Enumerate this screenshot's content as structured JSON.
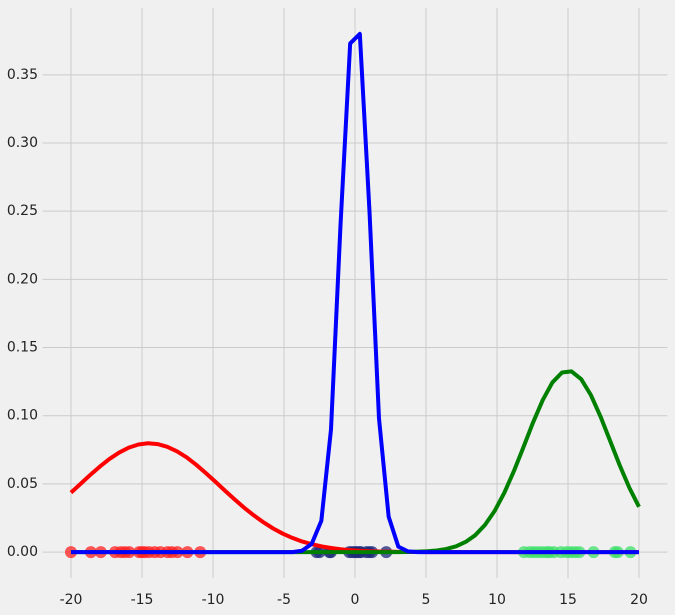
{
  "chart_data": {
    "type": "line",
    "x": [
      -20.0,
      -19.32,
      -18.64,
      -17.97,
      -17.29,
      -16.61,
      -15.93,
      -15.25,
      -14.58,
      -13.9,
      -13.22,
      -12.54,
      -11.86,
      -11.19,
      -10.51,
      -9.83,
      -9.15,
      -8.47,
      -7.8,
      -7.12,
      -6.44,
      -5.76,
      -5.08,
      -4.41,
      -3.73,
      -3.05,
      -2.37,
      -1.69,
      -1.02,
      -0.34,
      0.34,
      1.02,
      1.69,
      2.37,
      3.05,
      3.73,
      4.41,
      5.08,
      5.76,
      6.44,
      7.12,
      7.8,
      8.47,
      9.15,
      9.83,
      10.51,
      11.19,
      11.86,
      12.54,
      13.22,
      13.9,
      14.58,
      15.25,
      15.93,
      16.61,
      17.29,
      17.97,
      18.64,
      19.32,
      20.0
    ],
    "series": [
      {
        "color": "#ff0000",
        "values": [
          0.0436,
          0.0501,
          0.0566,
          0.0627,
          0.0683,
          0.073,
          0.0766,
          0.0789,
          0.0798,
          0.0792,
          0.0772,
          0.0739,
          0.0695,
          0.0641,
          0.058,
          0.0516,
          0.045,
          0.0386,
          0.0325,
          0.0269,
          0.0218,
          0.0173,
          0.0135,
          0.0104,
          0.0078,
          0.0058,
          0.0042,
          0.003,
          0.0021,
          0.0014,
          0.001,
          0.0006,
          0.0004,
          0.0003,
          0.0002,
          0.0001,
          0.0001,
          0,
          0,
          0,
          0,
          0,
          0,
          0,
          0,
          0,
          0,
          0,
          0,
          0,
          0,
          0,
          0,
          0,
          0,
          0,
          0,
          0,
          0,
          0
        ]
      },
      {
        "color": "#008000",
        "values": [
          0,
          0,
          0,
          0,
          0,
          0,
          0,
          0,
          0,
          0,
          0,
          0,
          0,
          0,
          0,
          0,
          0,
          0,
          0,
          0,
          0,
          0,
          0,
          0,
          0,
          0,
          0,
          0,
          0,
          0,
          0,
          0,
          0,
          0,
          0,
          0.0001,
          0.0003,
          0.0006,
          0.0012,
          0.0023,
          0.0042,
          0.0075,
          0.0124,
          0.0199,
          0.0301,
          0.0434,
          0.0594,
          0.0769,
          0.0951,
          0.1115,
          0.1244,
          0.1317,
          0.1325,
          0.1268,
          0.1152,
          0.0994,
          0.0815,
          0.0637,
          0.0472,
          0.0332
        ]
      },
      {
        "color": "#0000ff",
        "values": [
          0,
          0,
          0,
          0,
          0,
          0,
          0,
          0,
          0,
          0,
          0,
          0,
          0,
          0,
          0,
          0,
          0,
          0,
          0,
          0,
          0,
          0,
          0,
          0,
          0.001,
          0.006,
          0.023,
          0.09,
          0.24,
          0.373,
          0.38,
          0.25,
          0.098,
          0.026,
          0.004,
          0.0005,
          0,
          0,
          0,
          0,
          0,
          0,
          0,
          0,
          0,
          0,
          0,
          0,
          0,
          0,
          0,
          0,
          0,
          0,
          0,
          0,
          0,
          0,
          0,
          0
        ]
      }
    ],
    "scatter": [
      {
        "color": "#ff2020",
        "x": [
          -20,
          -18.6,
          -17.9,
          -16.9,
          -16.5,
          -16.2,
          -15.9,
          -15.2,
          -15.0,
          -14.8,
          -14.5,
          -14.1,
          -13.7,
          -13.2,
          -12.9,
          -12.5,
          -11.8,
          -10.9
        ],
        "values": [
          0,
          0,
          0,
          0,
          0,
          0,
          0,
          0,
          0,
          0,
          0,
          0,
          0,
          0,
          0,
          0,
          0,
          0
        ]
      },
      {
        "color": "#1c2a7a",
        "x": [
          -2.7,
          -2.5,
          -1.8,
          -1.7,
          -0.4,
          -0.2,
          0,
          0.1,
          0.3,
          0.4,
          0.8,
          1.0,
          1.2,
          2.2
        ],
        "values": [
          0,
          0,
          0,
          0,
          0,
          0,
          0,
          0,
          0,
          0,
          0,
          0,
          0,
          0
        ]
      },
      {
        "color": "#3ee06a",
        "x": [
          11.9,
          12.3,
          12.6,
          12.9,
          13.2,
          13.5,
          13.7,
          14.0,
          14.5,
          14.9,
          15.2,
          15.5,
          15.8,
          16.8,
          18.3,
          18.5,
          19.4
        ],
        "values": [
          0,
          0,
          0,
          0,
          0,
          0,
          0,
          0,
          0,
          0,
          0,
          0,
          0,
          0,
          0,
          0,
          0
        ]
      }
    ],
    "xlim": [
      -22,
      22
    ],
    "ylim": [
      -0.019,
      0.399
    ],
    "xticks": [
      -20,
      -15,
      -10,
      -5,
      0,
      5,
      10,
      15,
      20
    ],
    "yticks": [
      {
        "value": 0,
        "label": "0.00"
      },
      {
        "value": 0.05,
        "label": "0.05"
      },
      {
        "value": 0.1,
        "label": "0.10"
      },
      {
        "value": 0.15,
        "label": "0.15"
      },
      {
        "value": 0.2,
        "label": "0.20"
      },
      {
        "value": 0.25,
        "label": "0.25"
      },
      {
        "value": 0.3,
        "label": "0.30"
      },
      {
        "value": 0.35,
        "label": "0.35"
      }
    ],
    "grid": true
  }
}
